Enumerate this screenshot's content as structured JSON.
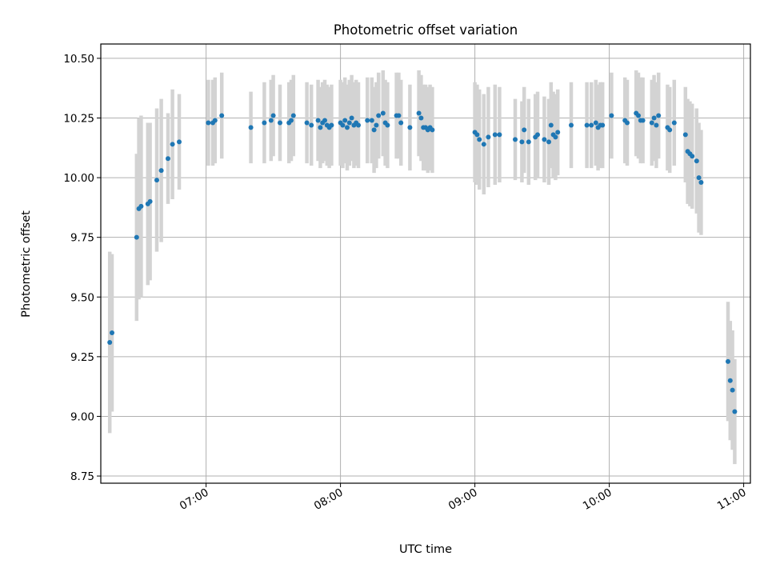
{
  "chart_data": {
    "type": "scatter",
    "title": "Photometric offset variation",
    "xlabel": "UTC time",
    "ylabel": "Photometric offset",
    "x_ticks": [
      "07:00",
      "08:00",
      "09:00",
      "10:00",
      "11:00"
    ],
    "y_ticks": [
      "8.75",
      "9.00",
      "9.25",
      "9.50",
      "9.75",
      "10.00",
      "10.25",
      "10.50"
    ],
    "xlim": [
      "06:13",
      "11:03"
    ],
    "ylim": [
      8.72,
      10.56
    ],
    "grid": true,
    "colors": {
      "marker": "#1f77b4",
      "errorbar": "#d3d3d3"
    },
    "points": [
      [
        "06:17",
        9.31,
        0.38
      ],
      [
        "06:18",
        9.35,
        0.33
      ],
      [
        "06:29",
        9.75,
        0.35
      ],
      [
        "06:30",
        9.87,
        0.38
      ],
      [
        "06:31",
        9.88,
        0.38
      ],
      [
        "06:34",
        9.89,
        0.34
      ],
      [
        "06:35",
        9.9,
        0.33
      ],
      [
        "06:38",
        9.99,
        0.3
      ],
      [
        "06:40",
        10.03,
        0.3
      ],
      [
        "06:43",
        10.08,
        0.19
      ],
      [
        "06:45",
        10.14,
        0.23
      ],
      [
        "06:48",
        10.15,
        0.2
      ],
      [
        "07:01",
        10.23,
        0.18
      ],
      [
        "07:03",
        10.23,
        0.18
      ],
      [
        "07:04",
        10.24,
        0.18
      ],
      [
        "07:07",
        10.26,
        0.18
      ],
      [
        "07:20",
        10.21,
        0.15
      ],
      [
        "07:26",
        10.23,
        0.17
      ],
      [
        "07:29",
        10.24,
        0.17
      ],
      [
        "07:30",
        10.26,
        0.17
      ],
      [
        "07:33",
        10.23,
        0.16
      ],
      [
        "07:37",
        10.23,
        0.17
      ],
      [
        "07:38",
        10.24,
        0.17
      ],
      [
        "07:39",
        10.26,
        0.17
      ],
      [
        "07:45",
        10.23,
        0.17
      ],
      [
        "07:47",
        10.22,
        0.17
      ],
      [
        "07:50",
        10.24,
        0.17
      ],
      [
        "07:51",
        10.21,
        0.17
      ],
      [
        "07:52",
        10.23,
        0.17
      ],
      [
        "07:53",
        10.24,
        0.17
      ],
      [
        "07:54",
        10.22,
        0.17
      ],
      [
        "07:55",
        10.21,
        0.17
      ],
      [
        "07:56",
        10.22,
        0.17
      ],
      [
        "08:00",
        10.23,
        0.18
      ],
      [
        "08:01",
        10.22,
        0.18
      ],
      [
        "08:02",
        10.24,
        0.18
      ],
      [
        "08:03",
        10.21,
        0.18
      ],
      [
        "08:04",
        10.23,
        0.18
      ],
      [
        "08:05",
        10.25,
        0.18
      ],
      [
        "08:06",
        10.22,
        0.18
      ],
      [
        "08:07",
        10.23,
        0.18
      ],
      [
        "08:08",
        10.22,
        0.18
      ],
      [
        "08:12",
        10.24,
        0.18
      ],
      [
        "08:14",
        10.24,
        0.18
      ],
      [
        "08:15",
        10.2,
        0.18
      ],
      [
        "08:16",
        10.22,
        0.18
      ],
      [
        "08:17",
        10.26,
        0.18
      ],
      [
        "08:19",
        10.27,
        0.18
      ],
      [
        "08:20",
        10.23,
        0.18
      ],
      [
        "08:21",
        10.22,
        0.18
      ],
      [
        "08:25",
        10.26,
        0.18
      ],
      [
        "08:26",
        10.26,
        0.18
      ],
      [
        "08:27",
        10.23,
        0.18
      ],
      [
        "08:31",
        10.21,
        0.18
      ],
      [
        "08:35",
        10.27,
        0.18
      ],
      [
        "08:36",
        10.25,
        0.18
      ],
      [
        "08:37",
        10.21,
        0.18
      ],
      [
        "08:38",
        10.21,
        0.18
      ],
      [
        "08:39",
        10.2,
        0.18
      ],
      [
        "08:40",
        10.21,
        0.18
      ],
      [
        "08:41",
        10.2,
        0.18
      ],
      [
        "09:00",
        10.19,
        0.21
      ],
      [
        "09:01",
        10.18,
        0.21
      ],
      [
        "09:02",
        10.16,
        0.21
      ],
      [
        "09:04",
        10.14,
        0.21
      ],
      [
        "09:06",
        10.17,
        0.21
      ],
      [
        "09:09",
        10.18,
        0.21
      ],
      [
        "09:11",
        10.18,
        0.2
      ],
      [
        "09:18",
        10.16,
        0.17
      ],
      [
        "09:21",
        10.15,
        0.17
      ],
      [
        "09:22",
        10.2,
        0.18
      ],
      [
        "09:24",
        10.15,
        0.18
      ],
      [
        "09:27",
        10.17,
        0.18
      ],
      [
        "09:28",
        10.18,
        0.18
      ],
      [
        "09:31",
        10.16,
        0.18
      ],
      [
        "09:33",
        10.15,
        0.18
      ],
      [
        "09:34",
        10.22,
        0.18
      ],
      [
        "09:35",
        10.18,
        0.18
      ],
      [
        "09:36",
        10.17,
        0.18
      ],
      [
        "09:37",
        10.19,
        0.18
      ],
      [
        "09:43",
        10.22,
        0.18
      ],
      [
        "09:50",
        10.22,
        0.18
      ],
      [
        "09:52",
        10.22,
        0.18
      ],
      [
        "09:54",
        10.23,
        0.18
      ],
      [
        "09:55",
        10.21,
        0.18
      ],
      [
        "09:56",
        10.22,
        0.18
      ],
      [
        "09:57",
        10.22,
        0.18
      ],
      [
        "10:01",
        10.26,
        0.18
      ],
      [
        "10:07",
        10.24,
        0.18
      ],
      [
        "10:08",
        10.23,
        0.18
      ],
      [
        "10:12",
        10.27,
        0.18
      ],
      [
        "10:13",
        10.26,
        0.18
      ],
      [
        "10:14",
        10.24,
        0.18
      ],
      [
        "10:15",
        10.24,
        0.18
      ],
      [
        "10:19",
        10.23,
        0.18
      ],
      [
        "10:20",
        10.25,
        0.18
      ],
      [
        "10:21",
        10.22,
        0.18
      ],
      [
        "10:22",
        10.26,
        0.18
      ],
      [
        "10:26",
        10.21,
        0.18
      ],
      [
        "10:27",
        10.2,
        0.18
      ],
      [
        "10:29",
        10.23,
        0.18
      ],
      [
        "10:34",
        10.18,
        0.2
      ],
      [
        "10:35",
        10.11,
        0.22
      ],
      [
        "10:36",
        10.1,
        0.22
      ],
      [
        "10:37",
        10.09,
        0.22
      ],
      [
        "10:39",
        10.07,
        0.22
      ],
      [
        "10:40",
        10.0,
        0.23
      ],
      [
        "10:41",
        9.98,
        0.22
      ],
      [
        "10:53",
        9.23,
        0.25
      ],
      [
        "10:54",
        9.15,
        0.25
      ],
      [
        "10:55",
        9.11,
        0.25
      ],
      [
        "10:56",
        9.02,
        0.22
      ]
    ]
  }
}
